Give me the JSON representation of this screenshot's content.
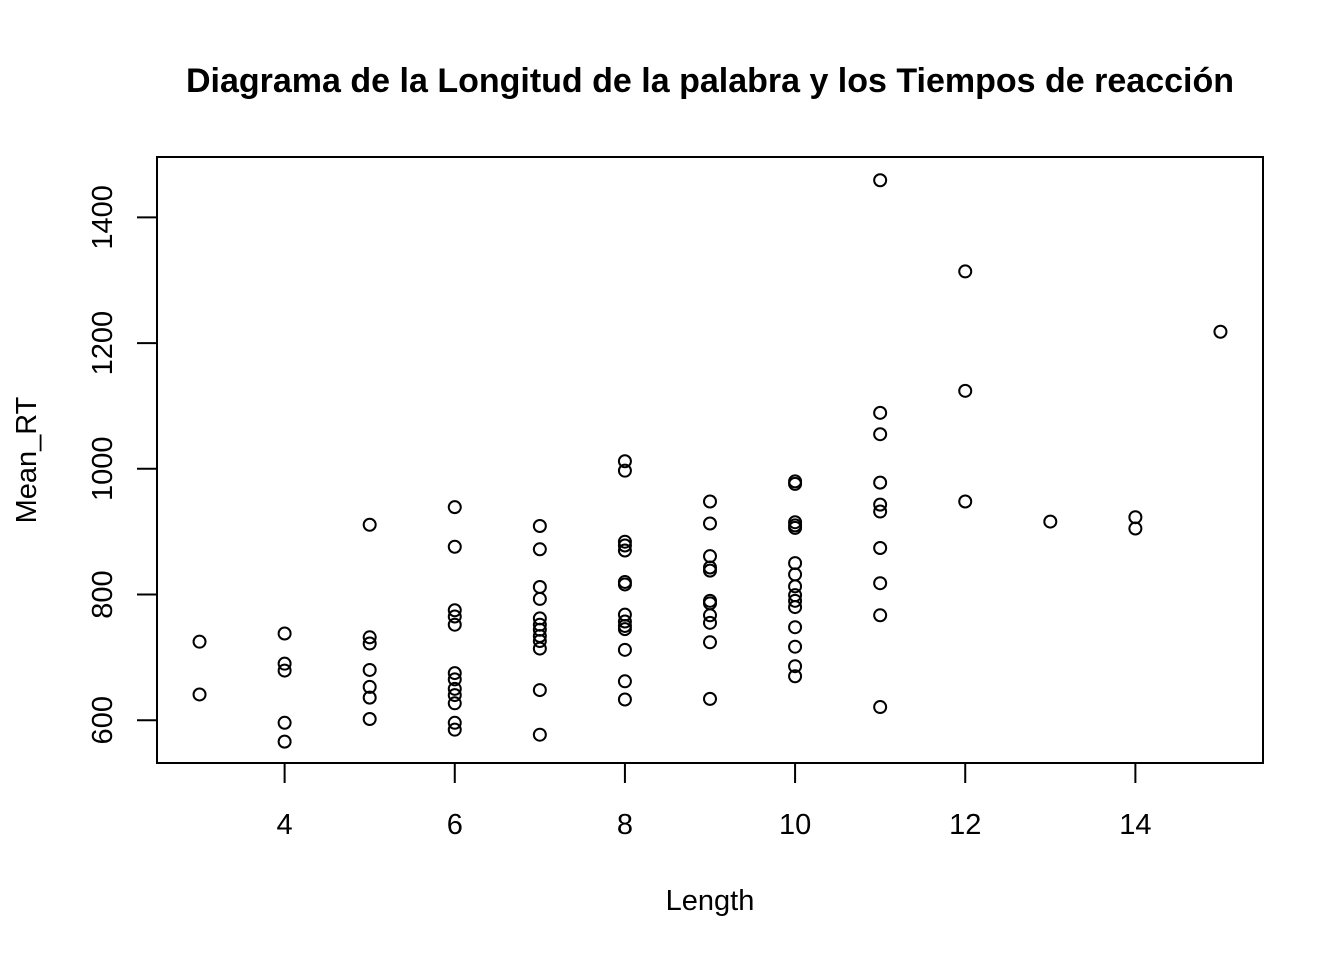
{
  "chart_data": {
    "type": "scatter",
    "title": "Diagrama de la Longitud de la palabra y los Tiempos de reacción",
    "xlabel": "Length",
    "ylabel": "Mean_RT",
    "xlim": [
      2.5,
      15.5
    ],
    "ylim": [
      532,
      1496
    ],
    "xticks": [
      4,
      6,
      8,
      10,
      12,
      14
    ],
    "yticks": [
      600,
      800,
      1000,
      1200,
      1400
    ],
    "grid": false,
    "legend": "none",
    "points": [
      {
        "x": 3,
        "y": 725
      },
      {
        "x": 3,
        "y": 641
      },
      {
        "x": 4,
        "y": 738
      },
      {
        "x": 4,
        "y": 690
      },
      {
        "x": 4,
        "y": 679
      },
      {
        "x": 4,
        "y": 596
      },
      {
        "x": 4,
        "y": 566
      },
      {
        "x": 5,
        "y": 911
      },
      {
        "x": 5,
        "y": 732
      },
      {
        "x": 5,
        "y": 722
      },
      {
        "x": 5,
        "y": 680
      },
      {
        "x": 5,
        "y": 653
      },
      {
        "x": 5,
        "y": 636
      },
      {
        "x": 5,
        "y": 602
      },
      {
        "x": 6,
        "y": 939
      },
      {
        "x": 6,
        "y": 876
      },
      {
        "x": 6,
        "y": 775
      },
      {
        "x": 6,
        "y": 765
      },
      {
        "x": 6,
        "y": 752
      },
      {
        "x": 6,
        "y": 675
      },
      {
        "x": 6,
        "y": 665
      },
      {
        "x": 6,
        "y": 650
      },
      {
        "x": 6,
        "y": 640
      },
      {
        "x": 6,
        "y": 627
      },
      {
        "x": 6,
        "y": 596
      },
      {
        "x": 6,
        "y": 585
      },
      {
        "x": 7,
        "y": 909
      },
      {
        "x": 7,
        "y": 872
      },
      {
        "x": 7,
        "y": 812
      },
      {
        "x": 7,
        "y": 793
      },
      {
        "x": 7,
        "y": 762
      },
      {
        "x": 7,
        "y": 752
      },
      {
        "x": 7,
        "y": 744
      },
      {
        "x": 7,
        "y": 734
      },
      {
        "x": 7,
        "y": 726
      },
      {
        "x": 7,
        "y": 714
      },
      {
        "x": 7,
        "y": 648
      },
      {
        "x": 7,
        "y": 577
      },
      {
        "x": 8,
        "y": 1012
      },
      {
        "x": 8,
        "y": 997
      },
      {
        "x": 8,
        "y": 884
      },
      {
        "x": 8,
        "y": 878
      },
      {
        "x": 8,
        "y": 870
      },
      {
        "x": 8,
        "y": 820
      },
      {
        "x": 8,
        "y": 816
      },
      {
        "x": 8,
        "y": 768
      },
      {
        "x": 8,
        "y": 757
      },
      {
        "x": 8,
        "y": 750
      },
      {
        "x": 8,
        "y": 745
      },
      {
        "x": 8,
        "y": 712
      },
      {
        "x": 8,
        "y": 662
      },
      {
        "x": 8,
        "y": 633
      },
      {
        "x": 9,
        "y": 948
      },
      {
        "x": 9,
        "y": 913
      },
      {
        "x": 9,
        "y": 861
      },
      {
        "x": 9,
        "y": 843
      },
      {
        "x": 9,
        "y": 838
      },
      {
        "x": 9,
        "y": 790
      },
      {
        "x": 9,
        "y": 786
      },
      {
        "x": 9,
        "y": 767
      },
      {
        "x": 9,
        "y": 755
      },
      {
        "x": 9,
        "y": 724
      },
      {
        "x": 9,
        "y": 634
      },
      {
        "x": 10,
        "y": 980
      },
      {
        "x": 10,
        "y": 976
      },
      {
        "x": 10,
        "y": 915
      },
      {
        "x": 10,
        "y": 910
      },
      {
        "x": 10,
        "y": 906
      },
      {
        "x": 10,
        "y": 850
      },
      {
        "x": 10,
        "y": 832
      },
      {
        "x": 10,
        "y": 813
      },
      {
        "x": 10,
        "y": 799
      },
      {
        "x": 10,
        "y": 790
      },
      {
        "x": 10,
        "y": 780
      },
      {
        "x": 10,
        "y": 748
      },
      {
        "x": 10,
        "y": 717
      },
      {
        "x": 10,
        "y": 686
      },
      {
        "x": 10,
        "y": 670
      },
      {
        "x": 11,
        "y": 1459
      },
      {
        "x": 11,
        "y": 1089
      },
      {
        "x": 11,
        "y": 1055
      },
      {
        "x": 11,
        "y": 978
      },
      {
        "x": 11,
        "y": 943
      },
      {
        "x": 11,
        "y": 932
      },
      {
        "x": 11,
        "y": 874
      },
      {
        "x": 11,
        "y": 818
      },
      {
        "x": 11,
        "y": 767
      },
      {
        "x": 11,
        "y": 621
      },
      {
        "x": 12,
        "y": 1314
      },
      {
        "x": 12,
        "y": 1124
      },
      {
        "x": 12,
        "y": 948
      },
      {
        "x": 13,
        "y": 916
      },
      {
        "x": 14,
        "y": 923
      },
      {
        "x": 14,
        "y": 905
      },
      {
        "x": 15,
        "y": 1218
      }
    ]
  }
}
